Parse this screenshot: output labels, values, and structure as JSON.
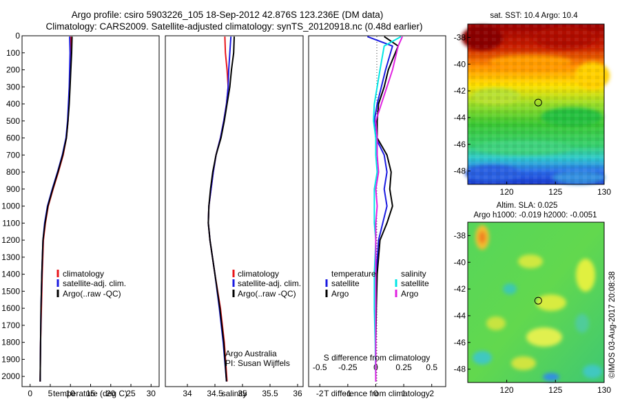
{
  "header": {
    "line1": "Argo profile: csiro 5903226_105 18-Sep-2012 42.876S 123.236E (DM data)",
    "line2": "Climatology: CARS2009. Satellite-adjusted climatology: synTS_20120918.nc (0.48d earlier)"
  },
  "side_stamp": "©IMOS 03-Aug-2017 20:08:38",
  "credit": {
    "line1": "Argo Australia",
    "line2": "PI: Susan Wijffels"
  },
  "colors": {
    "climatology": "#e8141a",
    "satellite": "#1a1ae0",
    "argo": "#000000",
    "cyan": "#00e5e5",
    "magenta": "#e020e0"
  },
  "chart_data": [
    {
      "type": "line",
      "id": "temperature",
      "xlabel": "temperature (deg C)",
      "ylabel": "",
      "xlim": [
        -2,
        32
      ],
      "ylim": [
        2060,
        0
      ],
      "xticks": [
        "0",
        "5",
        "10",
        "15",
        "20",
        "25",
        "30"
      ],
      "xtick_values": [
        0,
        5,
        10,
        15,
        20,
        25,
        30
      ],
      "yticks": [
        "0",
        "100",
        "200",
        "300",
        "400",
        "500",
        "600",
        "700",
        "800",
        "900",
        "1000",
        "1100",
        "1200",
        "1300",
        "1400",
        "1500",
        "1600",
        "1700",
        "1800",
        "1900",
        "2000"
      ],
      "ytick_values": [
        0,
        100,
        200,
        300,
        400,
        500,
        600,
        700,
        800,
        900,
        1000,
        1100,
        1200,
        1300,
        1400,
        1500,
        1600,
        1700,
        1800,
        1900,
        2000
      ],
      "legend": [
        "climatology",
        "satellite-adj. clim.",
        "Argo(..raw -QC)"
      ],
      "legend_position": "lower-right",
      "series": [
        {
          "name": "climatology",
          "color": "#e8141a",
          "x": [
            10.1,
            10.0,
            9.9,
            9.8,
            9.6,
            9.4,
            9.0,
            8.2,
            7.0,
            5.7,
            4.5,
            3.8,
            3.3,
            3.0,
            2.8,
            2.6,
            2.5
          ],
          "y": [
            5,
            100,
            200,
            300,
            400,
            500,
            600,
            700,
            800,
            900,
            1000,
            1100,
            1200,
            1400,
            1600,
            1800,
            2030
          ]
        },
        {
          "name": "satellite-adj. clim.",
          "color": "#1a1ae0",
          "x": [
            9.8,
            9.9,
            9.8,
            9.7,
            9.5,
            9.3,
            8.9,
            8.0,
            6.8,
            5.5,
            4.3,
            3.6,
            3.2,
            2.9,
            2.7,
            2.6,
            2.5
          ],
          "y": [
            5,
            100,
            200,
            300,
            400,
            500,
            600,
            700,
            800,
            900,
            1000,
            1100,
            1200,
            1400,
            1600,
            1800,
            2030
          ]
        },
        {
          "name": "Argo(..raw -QC)",
          "color": "#000000",
          "x": [
            10.4,
            10.3,
            10.1,
            9.9,
            9.7,
            9.4,
            9.0,
            8.1,
            6.9,
            5.6,
            4.4,
            3.7,
            3.2,
            2.9,
            2.7,
            2.6,
            2.5
          ],
          "y": [
            5,
            100,
            200,
            300,
            400,
            500,
            600,
            700,
            800,
            900,
            1000,
            1100,
            1200,
            1400,
            1600,
            1800,
            2030
          ]
        }
      ]
    },
    {
      "type": "line",
      "id": "salinity",
      "xlabel": "salinity",
      "xlim": [
        33.6,
        36.1
      ],
      "ylim": [
        2060,
        0
      ],
      "xticks": [
        "34",
        "34.5",
        "35",
        "35.5",
        "36"
      ],
      "xtick_values": [
        34,
        34.5,
        35,
        35.5,
        36
      ],
      "legend": [
        "climatology",
        "satellite-adj. clim.",
        "Argo(..raw -QC)"
      ],
      "legend_position": "lower-right",
      "series": [
        {
          "name": "climatology",
          "color": "#e8141a",
          "x": [
            34.68,
            34.69,
            34.72,
            34.74,
            34.71,
            34.66,
            34.6,
            34.52,
            34.47,
            34.43,
            34.39,
            34.38,
            34.41,
            34.5,
            34.6,
            34.67,
            34.72
          ],
          "y": [
            5,
            100,
            200,
            300,
            400,
            500,
            600,
            700,
            800,
            900,
            1000,
            1100,
            1200,
            1400,
            1600,
            1800,
            2030
          ]
        },
        {
          "name": "satellite-adj. clim.",
          "color": "#1a1ae0",
          "x": [
            34.79,
            34.77,
            34.75,
            34.74,
            34.71,
            34.66,
            34.6,
            34.52,
            34.47,
            34.43,
            34.39,
            34.38,
            34.41,
            34.5,
            34.58,
            34.65,
            34.71
          ],
          "y": [
            5,
            100,
            200,
            300,
            400,
            500,
            600,
            700,
            800,
            900,
            1000,
            1100,
            1200,
            1400,
            1600,
            1800,
            2030
          ]
        },
        {
          "name": "Argo(..raw -QC)",
          "color": "#000000",
          "x": [
            34.85,
            34.84,
            34.8,
            34.77,
            34.72,
            34.67,
            34.61,
            34.52,
            34.46,
            34.42,
            34.39,
            34.38,
            34.41,
            34.5,
            34.59,
            34.66,
            34.71
          ],
          "y": [
            5,
            100,
            200,
            300,
            400,
            500,
            600,
            700,
            800,
            900,
            1000,
            1100,
            1200,
            1400,
            1600,
            1800,
            2030
          ]
        }
      ]
    },
    {
      "type": "line",
      "id": "difference",
      "xlabel": "T difference from climatology",
      "xlabel_top": "S difference from climatology",
      "xlim": [
        -2.4,
        2.5
      ],
      "ylim": [
        2060,
        0
      ],
      "xticks": [
        "-2",
        "-1",
        "0",
        "1",
        "2"
      ],
      "xtick_values": [
        -2,
        -1,
        0,
        1,
        2
      ],
      "xticks_top": [
        "-0.5",
        "-0.25",
        "0",
        "0.25",
        "0.5"
      ],
      "xtick_top_values": [
        -2,
        -1,
        0,
        1,
        2
      ],
      "legend_groups": [
        {
          "title": "temperature",
          "items": [
            "satellite",
            "Argo"
          ]
        },
        {
          "title": "salinity",
          "items": [
            "satellite",
            "Argo"
          ]
        }
      ],
      "legend_position": "lower",
      "series": [
        {
          "name": "temperature satellite",
          "color": "#1a1ae0",
          "x": [
            -0.3,
            0.6,
            0.35,
            0.2,
            0.05,
            -0.05,
            0.0,
            0.3,
            0.4,
            0.3,
            0.4,
            0.25,
            0.1,
            0.02,
            0.0,
            0.0,
            0.0
          ],
          "y": [
            5,
            60,
            200,
            300,
            400,
            500,
            600,
            700,
            800,
            900,
            1000,
            1100,
            1200,
            1400,
            1600,
            1800,
            2030
          ]
        },
        {
          "name": "temperature Argo",
          "color": "#000000",
          "x": [
            0.3,
            0.8,
            0.45,
            0.3,
            0.1,
            0.05,
            0.05,
            0.4,
            0.55,
            0.5,
            0.6,
            0.4,
            0.15,
            0.05,
            0.02,
            0.0,
            0.0
          ],
          "y": [
            5,
            60,
            200,
            300,
            400,
            500,
            600,
            700,
            800,
            900,
            1000,
            1100,
            1200,
            1400,
            1600,
            1800,
            2030
          ]
        },
        {
          "name": "salinity satellite",
          "color": "#00e5e5",
          "x": [
            0.9,
            0.3,
            0.15,
            0.05,
            -0.05,
            -0.08,
            0.0,
            0.0,
            0.05,
            -0.05,
            -0.05,
            -0.05,
            0.0,
            -0.05,
            -0.05,
            -0.02,
            0.0
          ],
          "y": [
            5,
            60,
            200,
            300,
            400,
            500,
            600,
            700,
            800,
            900,
            1000,
            1100,
            1200,
            1400,
            1600,
            1800,
            2030
          ]
        },
        {
          "name": "salinity Argo",
          "color": "#e020e0",
          "x": [
            0.95,
            0.8,
            0.6,
            0.4,
            0.2,
            0.0,
            0.05,
            0.05,
            0.1,
            0.0,
            0.05,
            0.0,
            0.0,
            0.0,
            0.0,
            0.0,
            0.0
          ],
          "y": [
            5,
            60,
            200,
            300,
            400,
            500,
            600,
            700,
            800,
            900,
            1000,
            1100,
            1200,
            1400,
            1600,
            1800,
            2030
          ]
        }
      ]
    },
    {
      "type": "heatmap",
      "id": "sst-map",
      "title": "sat. SST: 10.4 Argo: 10.4",
      "xlim": [
        116,
        130
      ],
      "ylim": [
        -49,
        -37
      ],
      "xticks": [
        "120",
        "125",
        "130"
      ],
      "xtick_values": [
        120,
        125,
        130
      ],
      "yticks": [
        "-38",
        "-40",
        "-42",
        "-44",
        "-46",
        "-48"
      ],
      "ytick_values": [
        -38,
        -40,
        -42,
        -44,
        -46,
        -48
      ],
      "marker": {
        "lon": 123.236,
        "lat": -42.876
      }
    },
    {
      "type": "heatmap",
      "id": "sla-map",
      "title": "Altim. SLA: 0.025",
      "subtitle": "Argo h1000: -0.019 h2000: -0.0051",
      "xlim": [
        116,
        130
      ],
      "ylim": [
        -49,
        -37
      ],
      "xticks": [
        "120",
        "125",
        "130"
      ],
      "xtick_values": [
        120,
        125,
        130
      ],
      "yticks": [
        "-38",
        "-40",
        "-42",
        "-44",
        "-46",
        "-48"
      ],
      "ytick_values": [
        -38,
        -40,
        -42,
        -44,
        -46,
        -48
      ],
      "marker": {
        "lon": 123.236,
        "lat": -42.876
      }
    }
  ]
}
